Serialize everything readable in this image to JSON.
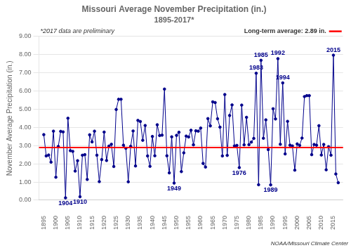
{
  "chart_data": {
    "type": "line",
    "title": "Missouri Average November Precipitation (in.)",
    "subtitle": "1895-2017*",
    "y_label": "November Average Precipitation (in.)",
    "note": "*2017 data are preliminary",
    "credit": "NOAA/Missouri Climate Center",
    "color": "#00008B",
    "marker": "circle",
    "grid": "y",
    "average_line": {
      "value": 2.89,
      "label": "Long-term average: 2.89 in.",
      "color": "#FF0000"
    },
    "xlim": [
      1893,
      2019
    ],
    "xticks": [
      1895,
      1900,
      1905,
      1910,
      1915,
      1920,
      1925,
      1930,
      1935,
      1940,
      1945,
      1950,
      1955,
      1960,
      1965,
      1970,
      1975,
      1980,
      1985,
      1990,
      1995,
      2000,
      2005,
      2010,
      2015
    ],
    "ylim": [
      0.0,
      9.0
    ],
    "yticks": [
      {
        "value": 0,
        "label": "0.00"
      },
      {
        "value": 1,
        "label": "1.00"
      },
      {
        "value": 2,
        "label": "2.00"
      },
      {
        "value": 3,
        "label": "3.00"
      },
      {
        "value": 4,
        "label": "4.00"
      },
      {
        "value": 5,
        "label": "5.00"
      },
      {
        "value": 6,
        "label": "6.00"
      },
      {
        "value": 7,
        "label": "7.00"
      },
      {
        "value": 8,
        "label": "8.00"
      },
      {
        "value": 9,
        "label": "9.00"
      }
    ],
    "annotations": [
      {
        "x": 1904,
        "y": 0.13,
        "text": "1904",
        "position": "below"
      },
      {
        "x": 1910,
        "y": 0.19,
        "text": "1910",
        "position": "below"
      },
      {
        "x": 1949,
        "y": 0.94,
        "text": "1949",
        "position": "below"
      },
      {
        "x": 1976,
        "y": 1.79,
        "text": "1976",
        "position": "below"
      },
      {
        "x": 1989,
        "y": 0.84,
        "text": "1989",
        "position": "below"
      },
      {
        "x": 1983,
        "y": 6.97,
        "text": "1983",
        "position": "above"
      },
      {
        "x": 1985,
        "y": 7.68,
        "text": "1985",
        "position": "above"
      },
      {
        "x": 1992,
        "y": 7.77,
        "text": "1992",
        "position": "above"
      },
      {
        "x": 1994,
        "y": 6.44,
        "text": "1994",
        "position": "above"
      },
      {
        "x": 2015,
        "y": 7.96,
        "text": "2015",
        "position": "above"
      }
    ],
    "x": [
      1895,
      1896,
      1897,
      1898,
      1899,
      1900,
      1901,
      1902,
      1903,
      1904,
      1905,
      1906,
      1907,
      1908,
      1909,
      1910,
      1911,
      1912,
      1913,
      1914,
      1915,
      1916,
      1917,
      1918,
      1919,
      1920,
      1921,
      1922,
      1923,
      1924,
      1925,
      1926,
      1927,
      1928,
      1929,
      1930,
      1931,
      1932,
      1933,
      1934,
      1935,
      1936,
      1937,
      1938,
      1939,
      1940,
      1941,
      1942,
      1943,
      1944,
      1945,
      1946,
      1947,
      1948,
      1949,
      1950,
      1951,
      1952,
      1953,
      1954,
      1955,
      1956,
      1957,
      1958,
      1959,
      1960,
      1961,
      1962,
      1963,
      1964,
      1965,
      1966,
      1967,
      1968,
      1969,
      1970,
      1971,
      1972,
      1973,
      1974,
      1975,
      1976,
      1977,
      1978,
      1979,
      1980,
      1981,
      1982,
      1983,
      1984,
      1985,
      1986,
      1987,
      1988,
      1989,
      1990,
      1991,
      1992,
      1993,
      1994,
      1995,
      1996,
      1997,
      1998,
      1999,
      2000,
      2001,
      2002,
      2003,
      2004,
      2005,
      2006,
      2007,
      2008,
      2009,
      2010,
      2011,
      2012,
      2013,
      2014,
      2015,
      2016,
      2017
    ],
    "values": [
      3.6,
      2.43,
      2.48,
      2.09,
      3.79,
      1.26,
      2.95,
      3.78,
      3.75,
      0.13,
      4.5,
      2.72,
      2.68,
      1.6,
      2.17,
      0.19,
      2.47,
      2.5,
      1.14,
      3.59,
      3.2,
      3.79,
      2.47,
      1.02,
      2.23,
      3.74,
      2.18,
      2.97,
      3.07,
      1.85,
      4.98,
      5.54,
      5.54,
      3.02,
      2.85,
      1.01,
      2.96,
      3.8,
      1.88,
      4.38,
      4.32,
      3.29,
      4.1,
      2.43,
      1.86,
      3.5,
      2.44,
      4.14,
      3.55,
      3.57,
      6.1,
      2.44,
      1.5,
      3.48,
      0.94,
      3.56,
      3.73,
      1.57,
      2.6,
      3.52,
      3.47,
      3.84,
      3.04,
      3.81,
      3.79,
      3.96,
      2.02,
      1.82,
      4.48,
      4.08,
      5.4,
      5.36,
      4.47,
      4.01,
      2.43,
      5.8,
      2.46,
      4.65,
      5.23,
      2.98,
      3.01,
      1.79,
      5.22,
      3.04,
      4.55,
      3.05,
      3.19,
      3.39,
      6.97,
      0.85,
      7.68,
      3.4,
      4.41,
      2.78,
      0.84,
      5.02,
      4.46,
      7.77,
      3.07,
      6.44,
      2.54,
      4.33,
      3.02,
      2.98,
      1.65,
      3.09,
      3.01,
      3.41,
      5.69,
      5.74,
      5.74,
      2.5,
      3.06,
      3.02,
      4.09,
      2.48,
      3.06,
      1.67,
      2.94,
      2.47,
      7.96,
      1.44,
      0.96
    ]
  }
}
